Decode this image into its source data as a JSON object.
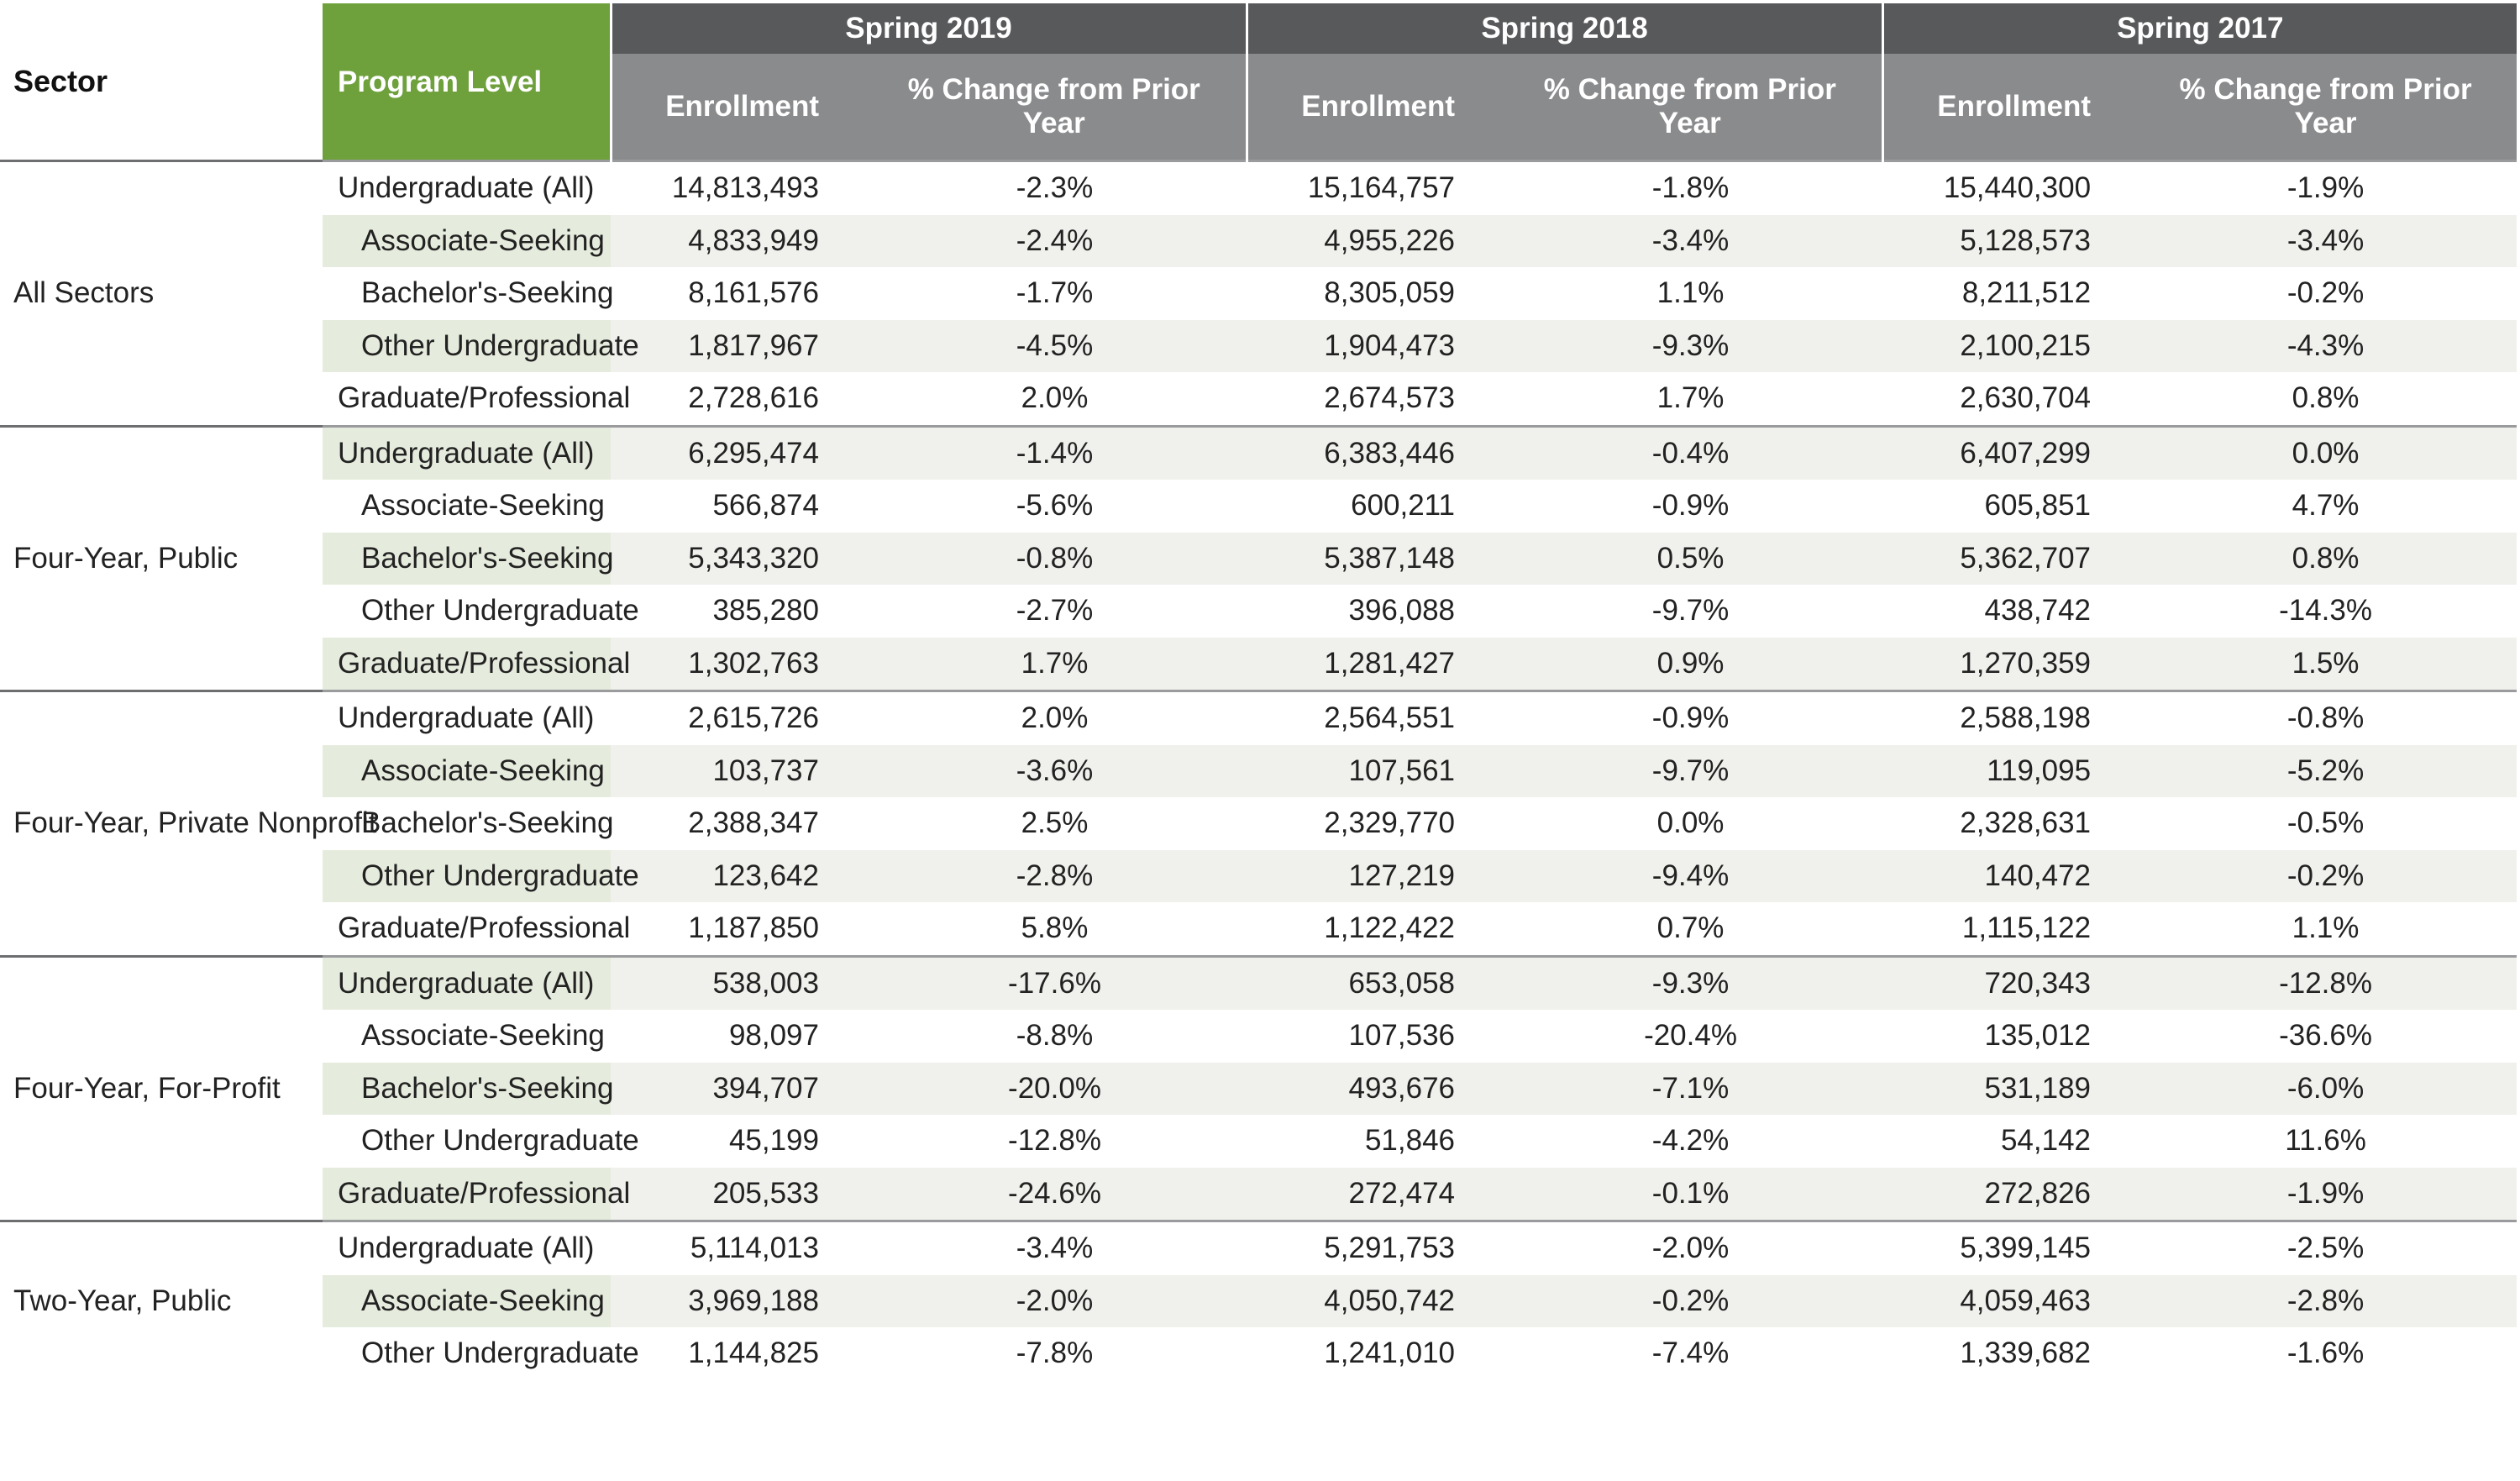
{
  "header": {
    "sector": "Sector",
    "program_level": "Program Level",
    "years": [
      "Spring 2019",
      "Spring 2018",
      "Spring 2017"
    ],
    "enrollment": "Enrollment",
    "pct_change": "% Change from Prior Year"
  },
  "groups": [
    {
      "sector": "All Sectors",
      "rows": [
        {
          "level": "Undergraduate (All)",
          "values": [
            "14,813,493",
            "-2.3%",
            "15,164,757",
            "-1.8%",
            "15,440,300",
            "-1.9%"
          ]
        },
        {
          "level": "Associate-Seeking",
          "values": [
            "4,833,949",
            "-2.4%",
            "4,955,226",
            "-3.4%",
            "5,128,573",
            "-3.4%"
          ]
        },
        {
          "level": "Bachelor's-Seeking",
          "values": [
            "8,161,576",
            "-1.7%",
            "8,305,059",
            "1.1%",
            "8,211,512",
            "-0.2%"
          ]
        },
        {
          "level": "Other Undergraduate",
          "values": [
            "1,817,967",
            "-4.5%",
            "1,904,473",
            "-9.3%",
            "2,100,215",
            "-4.3%"
          ]
        },
        {
          "level": "Graduate/Professional",
          "values": [
            "2,728,616",
            "2.0%",
            "2,674,573",
            "1.7%",
            "2,630,704",
            "0.8%"
          ]
        }
      ]
    },
    {
      "sector": "Four-Year, Public",
      "rows": [
        {
          "level": "Undergraduate (All)",
          "values": [
            "6,295,474",
            "-1.4%",
            "6,383,446",
            "-0.4%",
            "6,407,299",
            "0.0%"
          ]
        },
        {
          "level": "Associate-Seeking",
          "values": [
            "566,874",
            "-5.6%",
            "600,211",
            "-0.9%",
            "605,851",
            "4.7%"
          ]
        },
        {
          "level": "Bachelor's-Seeking",
          "values": [
            "5,343,320",
            "-0.8%",
            "5,387,148",
            "0.5%",
            "5,362,707",
            "0.8%"
          ]
        },
        {
          "level": "Other Undergraduate",
          "values": [
            "385,280",
            "-2.7%",
            "396,088",
            "-9.7%",
            "438,742",
            "-14.3%"
          ]
        },
        {
          "level": "Graduate/Professional",
          "values": [
            "1,302,763",
            "1.7%",
            "1,281,427",
            "0.9%",
            "1,270,359",
            "1.5%"
          ]
        }
      ]
    },
    {
      "sector": "Four-Year, Private Nonprofit",
      "rows": [
        {
          "level": "Undergraduate (All)",
          "values": [
            "2,615,726",
            "2.0%",
            "2,564,551",
            "-0.9%",
            "2,588,198",
            "-0.8%"
          ]
        },
        {
          "level": "Associate-Seeking",
          "values": [
            "103,737",
            "-3.6%",
            "107,561",
            "-9.7%",
            "119,095",
            "-5.2%"
          ]
        },
        {
          "level": "Bachelor's-Seeking",
          "values": [
            "2,388,347",
            "2.5%",
            "2,329,770",
            "0.0%",
            "2,328,631",
            "-0.5%"
          ]
        },
        {
          "level": "Other Undergraduate",
          "values": [
            "123,642",
            "-2.8%",
            "127,219",
            "-9.4%",
            "140,472",
            "-0.2%"
          ]
        },
        {
          "level": "Graduate/Professional",
          "values": [
            "1,187,850",
            "5.8%",
            "1,122,422",
            "0.7%",
            "1,115,122",
            "1.1%"
          ]
        }
      ]
    },
    {
      "sector": "Four-Year, For-Profit",
      "rows": [
        {
          "level": "Undergraduate (All)",
          "values": [
            "538,003",
            "-17.6%",
            "653,058",
            "-9.3%",
            "720,343",
            "-12.8%"
          ]
        },
        {
          "level": "Associate-Seeking",
          "values": [
            "98,097",
            "-8.8%",
            "107,536",
            "-20.4%",
            "135,012",
            "-36.6%"
          ]
        },
        {
          "level": "Bachelor's-Seeking",
          "values": [
            "394,707",
            "-20.0%",
            "493,676",
            "-7.1%",
            "531,189",
            "-6.0%"
          ]
        },
        {
          "level": "Other Undergraduate",
          "values": [
            "45,199",
            "-12.8%",
            "51,846",
            "-4.2%",
            "54,142",
            "11.6%"
          ]
        },
        {
          "level": "Graduate/Professional",
          "values": [
            "205,533",
            "-24.6%",
            "272,474",
            "-0.1%",
            "272,826",
            "-1.9%"
          ]
        }
      ]
    },
    {
      "sector": "Two-Year, Public",
      "rows": [
        {
          "level": "Undergraduate (All)",
          "values": [
            "5,114,013",
            "-3.4%",
            "5,291,753",
            "-2.0%",
            "5,399,145",
            "-2.5%"
          ]
        },
        {
          "level": "Associate-Seeking",
          "values": [
            "3,969,188",
            "-2.0%",
            "4,050,742",
            "-0.2%",
            "4,059,463",
            "-2.8%"
          ]
        },
        {
          "level": "Other Undergraduate",
          "values": [
            "1,144,825",
            "-7.8%",
            "1,241,010",
            "-7.4%",
            "1,339,682",
            "-1.6%"
          ]
        }
      ]
    }
  ]
}
